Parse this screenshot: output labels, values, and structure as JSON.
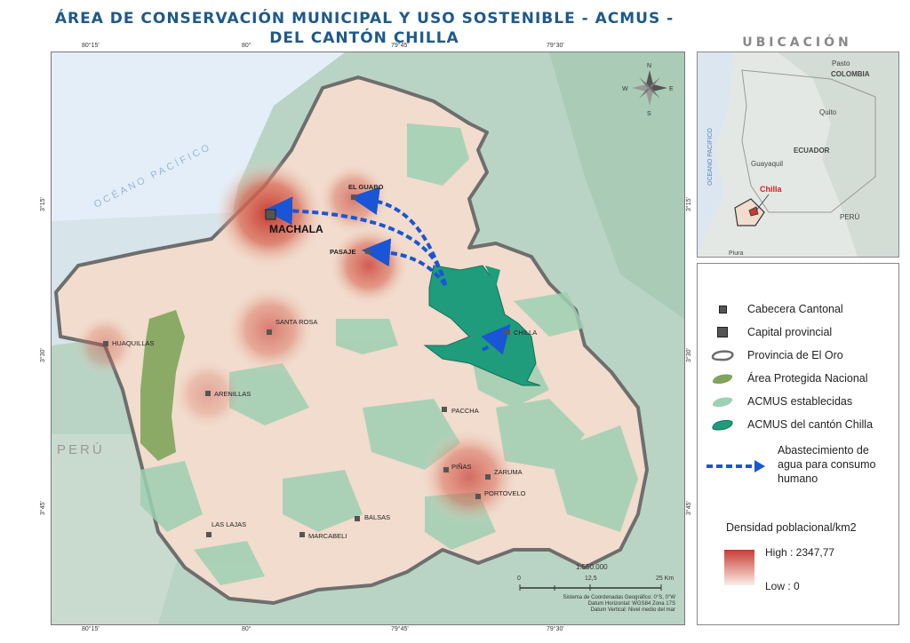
{
  "title": {
    "line1": "ÁREA DE CONSERVACIÓN MUNICIPAL Y USO SOSTENIBLE - ACMUS -",
    "line2": "DEL CANTÓN CHILLA"
  },
  "coords": {
    "top": [
      "80°15'",
      "80°",
      "79°45'",
      "79°30'"
    ],
    "bottom": [
      "80°15'",
      "80°",
      "79°45'",
      "79°30'"
    ],
    "left": [
      "3°15'",
      "3°30'",
      "3°45'"
    ],
    "right": [
      "3°15'",
      "3°30'",
      "3°45'"
    ]
  },
  "map": {
    "ocean_label": "OCÉANO PACÍFICO",
    "country_label": "PERÚ",
    "capital": "MACHALA",
    "towns": {
      "el_guabo": "EL GUABO",
      "pasaje": "PASAJE",
      "santa_rosa": "SANTA ROSA",
      "huaquillas": "HUAQUILLAS",
      "arenillas": "ARENILLAS",
      "chilla": "CHILLA",
      "paccha": "PACCHA",
      "pinas": "PIÑAS",
      "zaruma": "ZARUMA",
      "portovelo": "PORTOVELO",
      "las_lajas": "LAS LAJAS",
      "marcabeli": "MARCABELI",
      "balsas": "BALSAS"
    },
    "compass": {
      "n": "N",
      "s": "S",
      "e": "E",
      "w": "W"
    },
    "scale": {
      "label": "1:550.000",
      "t0": "0",
      "t1": "12,5",
      "t2": "25 Km"
    },
    "datum": [
      "Sistema de Coordenadas Geográfico: 0°S, 0°W",
      "Datum Horizontal: WGS84 Zona 17S",
      "Datum Vertical: Nivel medio del mar"
    ]
  },
  "location": {
    "title": "UBICACIÓN",
    "pasto": "Pasto",
    "colombia": "COLOMBIA",
    "quito": "Quito",
    "ecuador": "ECUADOR",
    "guayaquil": "Guayaquil",
    "chilla": "Chilla",
    "peru": "PERÚ",
    "piura": "Piura",
    "ocean": "OCEANO PACIFICO"
  },
  "legend": {
    "items": [
      "Cabecera Cantonal",
      "Capital  provincial",
      "Provincia de El Oro",
      "Área Protegida Nacional",
      "ACMUS establecidas",
      "ACMUS del cantón Chilla"
    ],
    "water_supply": [
      "Abastecimiento de",
      "agua para consumo",
      "humano"
    ],
    "density_title": "Densidad poblacional/km2",
    "high": "High : 2347,77",
    "low": "Low : 0"
  },
  "colors": {
    "province_fill": "#f1dccd",
    "density_high": "#c73c34",
    "protected_area": "#7fa45b",
    "acmus_established": "#9ed0b3",
    "acmus_chilla": "#1f9c7c",
    "arrow": "#1a55d6",
    "title": "#1f5a8a"
  }
}
